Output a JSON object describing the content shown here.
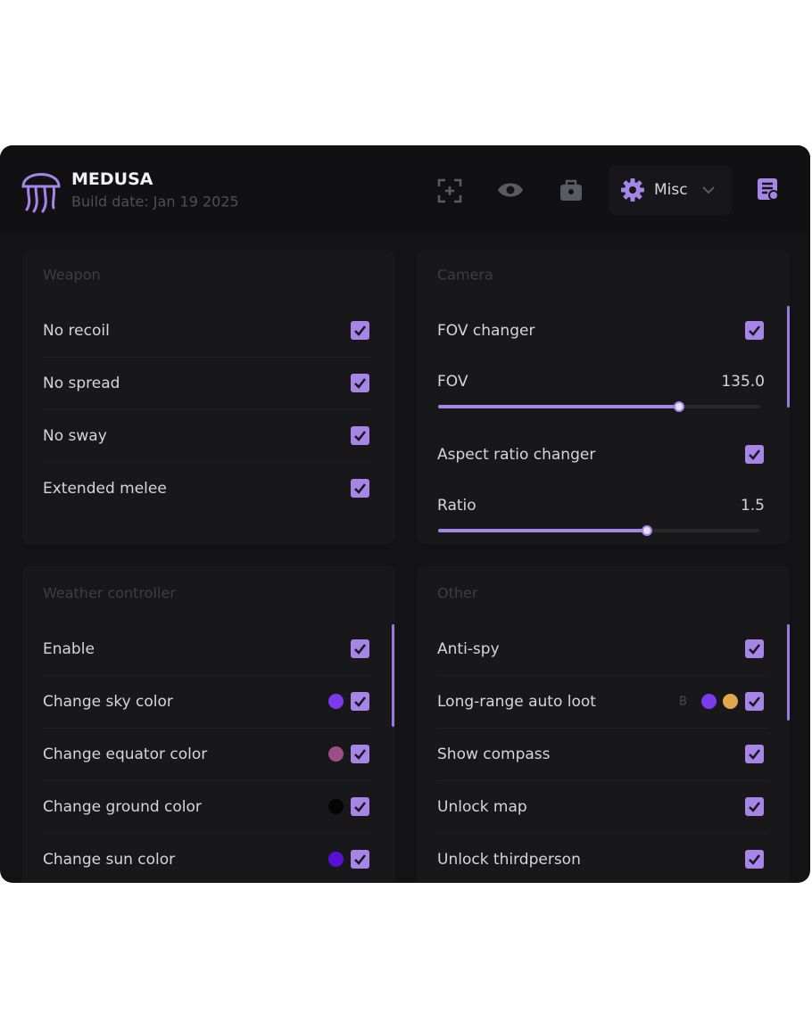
{
  "header": {
    "title": "MEDUSA",
    "subtitle": "Build date: Jan 19 2025",
    "tab": "Misc"
  },
  "cards": [
    {
      "title": "Weapon",
      "rows": [
        {
          "label": "No recoil",
          "checked": true
        },
        {
          "label": "No spread",
          "checked": true
        },
        {
          "label": "No sway",
          "checked": true
        },
        {
          "label": "Extended melee",
          "checked": true
        }
      ]
    },
    {
      "title": "Camera",
      "rows": [
        {
          "label": "FOV changer",
          "checked": true
        },
        {
          "label": "FOV",
          "value": "135.0"
        },
        {
          "label": "Aspect ratio changer",
          "checked": true
        },
        {
          "label": "Ratio",
          "value": "1.5"
        }
      ]
    },
    {
      "title": "Weather controller",
      "rows": [
        {
          "label": "Enable",
          "checked": true
        },
        {
          "label": "Change sky color",
          "checked": true,
          "swatches": [
            "#7c3aed"
          ]
        },
        {
          "label": "Change equator color",
          "checked": true,
          "swatches": [
            "#9b4f86"
          ]
        },
        {
          "label": "Change ground color",
          "checked": true,
          "swatches": [
            "#050505"
          ]
        },
        {
          "label": "Change sun color",
          "checked": true,
          "swatches": [
            "#5b0fd6"
          ]
        }
      ]
    },
    {
      "title": "Other",
      "rows": [
        {
          "label": "Anti-spy",
          "checked": true
        },
        {
          "label": "Long-range auto loot",
          "checked": true,
          "key": "B",
          "swatches": [
            "#7c3aed",
            "#e0a84a"
          ]
        },
        {
          "label": "Show compass",
          "checked": true
        },
        {
          "label": "Unlock map",
          "checked": true
        },
        {
          "label": "Unlock thirdperson",
          "checked": true
        }
      ]
    }
  ]
}
